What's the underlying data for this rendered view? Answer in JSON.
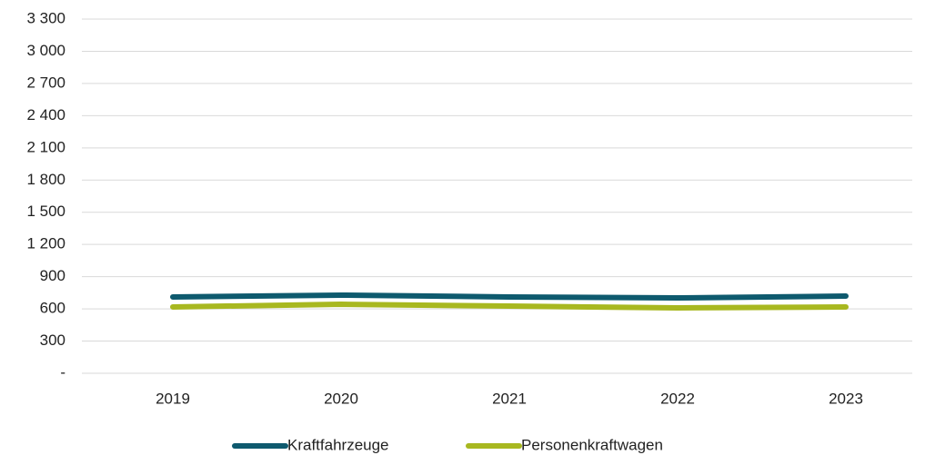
{
  "chart_data": {
    "type": "line",
    "categories": [
      "2019",
      "2020",
      "2021",
      "2022",
      "2023"
    ],
    "series": [
      {
        "name": "Kraftfahrzeuge",
        "color": "#0e5a6e",
        "values": [
          711,
          728,
          711,
          702,
          719
        ]
      },
      {
        "name": "Personenkraftwagen",
        "color": "#a8b820",
        "values": [
          618,
          643,
          626,
          609,
          618
        ]
      }
    ],
    "ylim": [
      0,
      3300
    ],
    "yticks": [
      {
        "value": 0,
        "label": "-"
      },
      300,
      600,
      900,
      {
        "value": 1200,
        "label": "1 200"
      },
      {
        "value": 1500,
        "label": "1 500"
      },
      {
        "value": 1800,
        "label": "1 800"
      },
      {
        "value": 2100,
        "label": "2 100"
      },
      {
        "value": 2400,
        "label": "2 400"
      },
      {
        "value": 2700,
        "label": "2 700"
      },
      {
        "value": 3000,
        "label": "3 000"
      },
      {
        "value": 3300,
        "label": "3 300"
      }
    ],
    "grid": true,
    "legend": "bottom"
  }
}
